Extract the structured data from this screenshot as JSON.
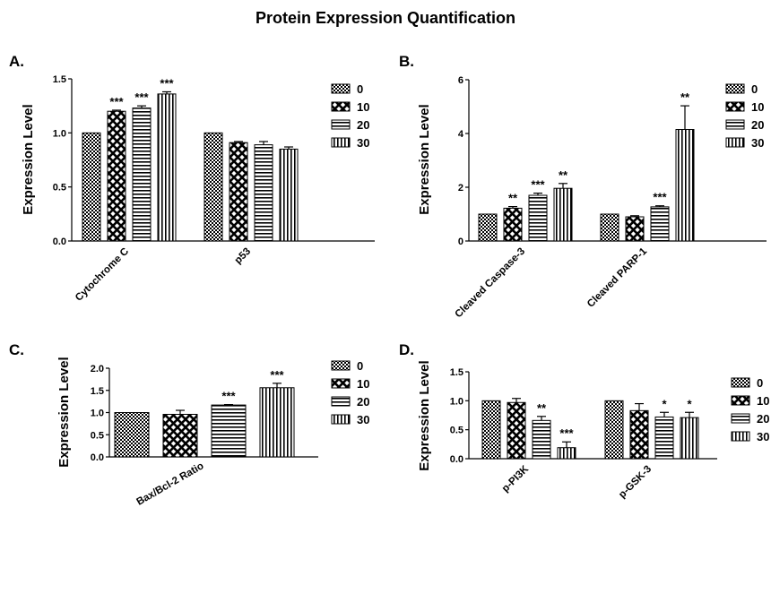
{
  "figure_title": "Protein Expression Quantification",
  "legend_labels": [
    "0",
    "10",
    "20",
    "30"
  ],
  "chart_data": [
    {
      "panel": "A.",
      "type": "bar",
      "ylabel": "Expression Level",
      "ylim": [
        0,
        1.5
      ],
      "yticks": [
        "0.0",
        "0.5",
        "1.0",
        "1.5"
      ],
      "categories": [
        "Cytochrome C",
        "p53"
      ],
      "series": [
        {
          "name": "0",
          "values": [
            1.0,
            1.0
          ],
          "errors": [
            0,
            0
          ],
          "sig": [
            "",
            ""
          ]
        },
        {
          "name": "10",
          "values": [
            1.2,
            0.91
          ],
          "errors": [
            0.01,
            0.01
          ],
          "sig": [
            "***",
            ""
          ]
        },
        {
          "name": "20",
          "values": [
            1.23,
            0.89
          ],
          "errors": [
            0.02,
            0.03
          ],
          "sig": [
            "***",
            ""
          ]
        },
        {
          "name": "30",
          "values": [
            1.36,
            0.85
          ],
          "errors": [
            0.02,
            0.02
          ],
          "sig": [
            "***",
            ""
          ]
        }
      ]
    },
    {
      "panel": "B.",
      "type": "bar",
      "ylabel": "Expression Level",
      "ylim": [
        0,
        6
      ],
      "yticks": [
        "0",
        "2",
        "4",
        "6"
      ],
      "categories": [
        "Cleaved Caspase-3",
        "Cleaved PARP-1"
      ],
      "series": [
        {
          "name": "0",
          "values": [
            1.0,
            1.0
          ],
          "errors": [
            0,
            0
          ],
          "sig": [
            "",
            ""
          ]
        },
        {
          "name": "10",
          "values": [
            1.22,
            0.9
          ],
          "errors": [
            0.06,
            0.04
          ],
          "sig": [
            "**",
            ""
          ]
        },
        {
          "name": "20",
          "values": [
            1.7,
            1.27
          ],
          "errors": [
            0.08,
            0.04
          ],
          "sig": [
            "***",
            "***"
          ]
        },
        {
          "name": "30",
          "values": [
            1.96,
            4.15
          ],
          "errors": [
            0.18,
            0.88
          ],
          "sig": [
            "**",
            "**"
          ]
        }
      ]
    },
    {
      "panel": "C.",
      "type": "bar",
      "ylabel": "Expression Level",
      "ylim": [
        0,
        2.0
      ],
      "yticks": [
        "0.0",
        "0.5",
        "1.0",
        "1.5",
        "2.0"
      ],
      "categories": [
        "Bax/Bcl-2 Ratio"
      ],
      "series": [
        {
          "name": "0",
          "values": [
            1.0
          ],
          "errors": [
            0
          ],
          "sig": [
            ""
          ]
        },
        {
          "name": "10",
          "values": [
            0.96
          ],
          "errors": [
            0.09
          ],
          "sig": [
            ""
          ]
        },
        {
          "name": "20",
          "values": [
            1.17
          ],
          "errors": [
            0.01
          ],
          "sig": [
            "***"
          ]
        },
        {
          "name": "30",
          "values": [
            1.56
          ],
          "errors": [
            0.1
          ],
          "sig": [
            "***"
          ]
        }
      ]
    },
    {
      "panel": "D.",
      "type": "bar",
      "ylabel": "Expression Level",
      "ylim": [
        0,
        1.5
      ],
      "yticks": [
        "0.0",
        "0.5",
        "1.0",
        "1.5"
      ],
      "categories": [
        "p-PI3K",
        "p-GSK-3"
      ],
      "series": [
        {
          "name": "0",
          "values": [
            1.0,
            1.0
          ],
          "errors": [
            0,
            0
          ],
          "sig": [
            "",
            ""
          ]
        },
        {
          "name": "10",
          "values": [
            0.97,
            0.83
          ],
          "errors": [
            0.07,
            0.12
          ],
          "sig": [
            "",
            ""
          ]
        },
        {
          "name": "20",
          "values": [
            0.66,
            0.72
          ],
          "errors": [
            0.07,
            0.08
          ],
          "sig": [
            "**",
            "*"
          ]
        },
        {
          "name": "30",
          "values": [
            0.19,
            0.71
          ],
          "errors": [
            0.1,
            0.09
          ],
          "sig": [
            "***",
            "*"
          ]
        }
      ]
    }
  ]
}
